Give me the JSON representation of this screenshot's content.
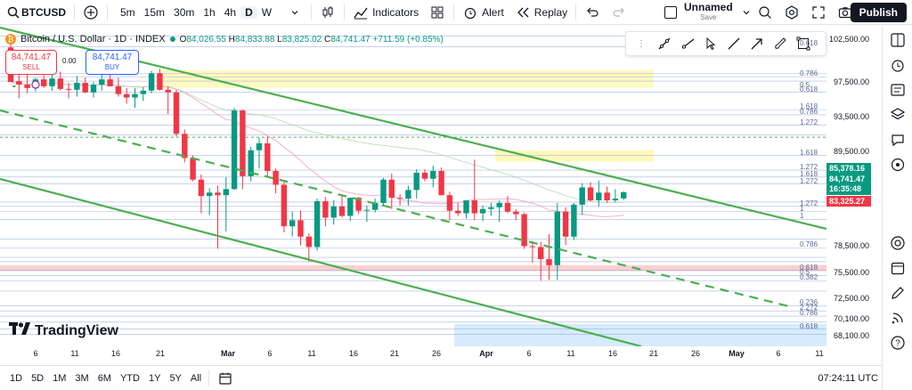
{
  "toolbar": {
    "symbol": "BTCUSD",
    "timeframes": [
      "5m",
      "15m",
      "30m",
      "1h",
      "4h",
      "D",
      "W"
    ],
    "active_timeframe": "D",
    "indicators_label": "Indicators",
    "alert_label": "Alert",
    "replay_label": "Replay",
    "layout_name": "Unnamed",
    "layout_status": "Save",
    "publish_label": "Publish"
  },
  "legend": {
    "title": "Bitcoin / U.S. Dollar · 1D · INDEX",
    "open_label": "O",
    "open": "84,026.55",
    "high_label": "H",
    "high": "84,833.88",
    "low_label": "L",
    "low": "83,825.02",
    "close_label": "C",
    "close": "84,741.47",
    "change": "+711.59 (+0.85%)"
  },
  "trade": {
    "sell_price": "84,741.47",
    "sell_label": "SELL",
    "spread": "0.00",
    "buy_price": "84,741.47",
    "buy_label": "BUY"
  },
  "price_axis": {
    "ticks": [
      "102,500.00",
      "97,500.00",
      "93,500.00",
      "89,500.00",
      "78,500.00",
      "75,500.00",
      "72,500.00",
      "70,100.00",
      "68,100.00"
    ],
    "fib_labels": [
      "0.618",
      "0.786",
      "0.5",
      "0.618",
      "1.618",
      "0.786",
      "1.272",
      "1.618",
      "1.272",
      "1.618",
      "1.272",
      "1",
      "1.272",
      "1",
      "0.786",
      "0.618",
      "0.5",
      "0.382",
      "0.236",
      "2.272",
      "0.786",
      "0.618"
    ],
    "highlight_high": "85,378.16",
    "highlight_last": "84,741.47",
    "countdown": "16:35:48",
    "highlight_low": "83,325.27"
  },
  "date_axis": [
    "6",
    "11",
    "16",
    "21",
    "Mar",
    "6",
    "11",
    "16",
    "21",
    "26",
    "Apr",
    "6",
    "11",
    "16",
    "21",
    "26",
    "May",
    "6",
    "11"
  ],
  "bottom": {
    "ranges": [
      "1D",
      "5D",
      "1M",
      "3M",
      "6M",
      "YTD",
      "1Y",
      "5Y",
      "All"
    ],
    "clock": "07:24:11 UTC"
  },
  "brand": "TradingView",
  "colors": {
    "up": "#089981",
    "down": "#f23645",
    "channel": "#4caf50",
    "accent": "#2962ff"
  },
  "chart_data": {
    "type": "candlestick",
    "timeframe": "1D",
    "ylim": [
      66900,
      104000
    ],
    "candles": [
      {
        "o": 101500,
        "h": 102500,
        "l": 97800,
        "c": 97500
      },
      {
        "o": 97600,
        "h": 98800,
        "l": 95600,
        "c": 97200
      },
      {
        "o": 97200,
        "h": 98400,
        "l": 96200,
        "c": 96800
      },
      {
        "o": 96800,
        "h": 98000,
        "l": 96400,
        "c": 97800
      },
      {
        "o": 97800,
        "h": 98300,
        "l": 96800,
        "c": 97000
      },
      {
        "o": 97000,
        "h": 98500,
        "l": 96500,
        "c": 97900
      },
      {
        "o": 97900,
        "h": 98700,
        "l": 96500,
        "c": 96700
      },
      {
        "o": 96700,
        "h": 97400,
        "l": 95600,
        "c": 96600
      },
      {
        "o": 96600,
        "h": 98200,
        "l": 95800,
        "c": 97400
      },
      {
        "o": 97400,
        "h": 98000,
        "l": 96200,
        "c": 96300
      },
      {
        "o": 96300,
        "h": 97500,
        "l": 95700,
        "c": 97200
      },
      {
        "o": 97200,
        "h": 98800,
        "l": 96500,
        "c": 97800
      },
      {
        "o": 97800,
        "h": 98900,
        "l": 97000,
        "c": 97000
      },
      {
        "o": 97000,
        "h": 98000,
        "l": 95800,
        "c": 96100
      },
      {
        "o": 96100,
        "h": 96800,
        "l": 95000,
        "c": 95700
      },
      {
        "o": 95700,
        "h": 96800,
        "l": 94500,
        "c": 96100
      },
      {
        "o": 96100,
        "h": 96900,
        "l": 95300,
        "c": 96500
      },
      {
        "o": 96500,
        "h": 98800,
        "l": 96200,
        "c": 98500
      },
      {
        "o": 98500,
        "h": 99000,
        "l": 96500,
        "c": 96600
      },
      {
        "o": 96600,
        "h": 97000,
        "l": 93800,
        "c": 96300
      },
      {
        "o": 96300,
        "h": 96600,
        "l": 91200,
        "c": 91500
      },
      {
        "o": 91500,
        "h": 92000,
        "l": 88200,
        "c": 88700
      },
      {
        "o": 88700,
        "h": 89000,
        "l": 86000,
        "c": 86200
      },
      {
        "o": 86200,
        "h": 86800,
        "l": 82300,
        "c": 84300
      },
      {
        "o": 84300,
        "h": 85200,
        "l": 82100,
        "c": 84700
      },
      {
        "o": 84700,
        "h": 85500,
        "l": 78200,
        "c": 84400
      },
      {
        "o": 84400,
        "h": 86500,
        "l": 80200,
        "c": 85100
      },
      {
        "o": 85100,
        "h": 94500,
        "l": 85000,
        "c": 94200
      },
      {
        "o": 94200,
        "h": 94300,
        "l": 85100,
        "c": 86600
      },
      {
        "o": 86600,
        "h": 90000,
        "l": 86000,
        "c": 89600
      },
      {
        "o": 89600,
        "h": 91000,
        "l": 87500,
        "c": 90400
      },
      {
        "o": 90400,
        "h": 91200,
        "l": 86500,
        "c": 87200
      },
      {
        "o": 87200,
        "h": 87500,
        "l": 84600,
        "c": 85600
      },
      {
        "o": 85600,
        "h": 86000,
        "l": 80100,
        "c": 80800
      },
      {
        "o": 80800,
        "h": 82500,
        "l": 79600,
        "c": 81500
      },
      {
        "o": 81500,
        "h": 82600,
        "l": 78600,
        "c": 79600
      },
      {
        "o": 79600,
        "h": 80000,
        "l": 76700,
        "c": 78400
      },
      {
        "o": 78400,
        "h": 84000,
        "l": 78000,
        "c": 83700
      },
      {
        "o": 83700,
        "h": 84200,
        "l": 80800,
        "c": 81800
      },
      {
        "o": 81800,
        "h": 83800,
        "l": 81000,
        "c": 83100
      },
      {
        "o": 83100,
        "h": 84400,
        "l": 81800,
        "c": 82000
      },
      {
        "o": 82000,
        "h": 84000,
        "l": 81400,
        "c": 84100
      },
      {
        "o": 84100,
        "h": 84200,
        "l": 82200,
        "c": 82600
      },
      {
        "o": 82600,
        "h": 83200,
        "l": 81300,
        "c": 82700
      },
      {
        "o": 82700,
        "h": 84000,
        "l": 82400,
        "c": 83500
      },
      {
        "o": 83500,
        "h": 86400,
        "l": 83200,
        "c": 86200
      },
      {
        "o": 86200,
        "h": 86900,
        "l": 82800,
        "c": 84100
      },
      {
        "o": 84100,
        "h": 84500,
        "l": 83200,
        "c": 84000
      },
      {
        "o": 84000,
        "h": 85500,
        "l": 83200,
        "c": 85000
      },
      {
        "o": 85000,
        "h": 87400,
        "l": 84000,
        "c": 87000
      },
      {
        "o": 87000,
        "h": 87400,
        "l": 86000,
        "c": 86300
      },
      {
        "o": 86300,
        "h": 87800,
        "l": 85300,
        "c": 87200
      },
      {
        "o": 87200,
        "h": 87600,
        "l": 84600,
        "c": 84400
      },
      {
        "o": 84400,
        "h": 84800,
        "l": 81500,
        "c": 82600
      },
      {
        "o": 82600,
        "h": 83500,
        "l": 82000,
        "c": 82300
      },
      {
        "o": 82300,
        "h": 83800,
        "l": 81700,
        "c": 83800
      },
      {
        "o": 83800,
        "h": 88500,
        "l": 81500,
        "c": 82300
      },
      {
        "o": 82300,
        "h": 83200,
        "l": 81400,
        "c": 82800
      },
      {
        "o": 82800,
        "h": 83500,
        "l": 82000,
        "c": 83000
      },
      {
        "o": 83000,
        "h": 83800,
        "l": 81300,
        "c": 83500
      },
      {
        "o": 83500,
        "h": 84300,
        "l": 82300,
        "c": 82500
      },
      {
        "o": 82500,
        "h": 82800,
        "l": 81500,
        "c": 82200
      },
      {
        "o": 82200,
        "h": 82400,
        "l": 78200,
        "c": 78500
      },
      {
        "o": 78500,
        "h": 79100,
        "l": 76600,
        "c": 78400
      },
      {
        "o": 78400,
        "h": 79000,
        "l": 74500,
        "c": 77000
      },
      {
        "o": 77000,
        "h": 79900,
        "l": 74600,
        "c": 76300
      },
      {
        "o": 76300,
        "h": 83500,
        "l": 74600,
        "c": 82500
      },
      {
        "o": 82500,
        "h": 83000,
        "l": 78600,
        "c": 79600
      },
      {
        "o": 79600,
        "h": 83500,
        "l": 79200,
        "c": 83300
      },
      {
        "o": 83300,
        "h": 85800,
        "l": 82100,
        "c": 85300
      },
      {
        "o": 85300,
        "h": 85900,
        "l": 83700,
        "c": 83800
      },
      {
        "o": 83800,
        "h": 86100,
        "l": 83100,
        "c": 84700
      },
      {
        "o": 84700,
        "h": 85400,
        "l": 83500,
        "c": 83800
      },
      {
        "o": 83800,
        "h": 85100,
        "l": 83600,
        "c": 84000
      },
      {
        "o": 84026.55,
        "h": 84833.88,
        "l": 83825.02,
        "c": 84741.47
      }
    ]
  }
}
